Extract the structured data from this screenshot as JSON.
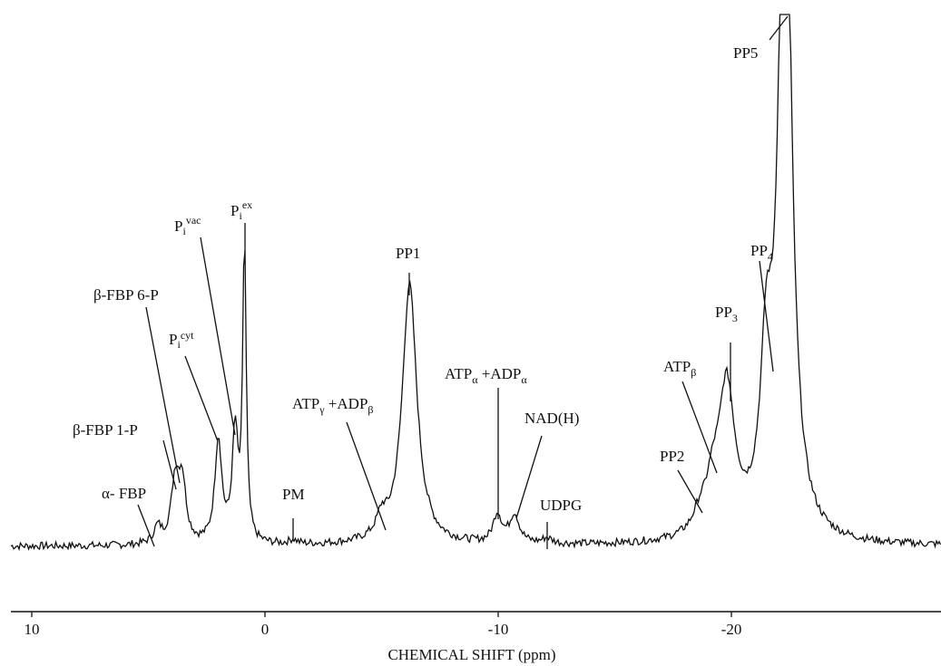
{
  "chart_data": {
    "type": "line",
    "title": "",
    "xlabel": "CHEMICAL SHIFT (ppm)",
    "ylabel": "",
    "xlim": [
      10.8,
      -28.5
    ],
    "x_ticks": [
      {
        "value": 10,
        "label": "10"
      },
      {
        "value": 0,
        "label": "0"
      },
      {
        "value": -10,
        "label": "-10"
      },
      {
        "value": -20,
        "label": "-20"
      }
    ],
    "baseline": 0.02,
    "series": [
      {
        "peaks": [
          {
            "x": 4.6,
            "height": 0.03,
            "width": 0.2
          },
          {
            "x": 3.85,
            "height": 0.11,
            "width": 0.2
          },
          {
            "x": 3.55,
            "height": 0.11,
            "width": 0.2
          },
          {
            "x": 2.0,
            "height": 0.19,
            "width": 0.18
          },
          {
            "x": 1.28,
            "height": 0.2,
            "width": 0.15
          },
          {
            "x": 0.88,
            "height": 0.55,
            "width": 0.09
          },
          {
            "x": -1.2,
            "height": 0.008,
            "width": 0.2
          },
          {
            "x": -5.0,
            "height": 0.035,
            "width": 0.25
          },
          {
            "x": -6.2,
            "height": 0.48,
            "width": 0.38
          },
          {
            "x": -9.97,
            "height": 0.053,
            "width": 0.22
          },
          {
            "x": -10.7,
            "height": 0.053,
            "width": 0.25
          },
          {
            "x": -12.1,
            "height": 0.01,
            "width": 0.25
          },
          {
            "x": -18.65,
            "height": 0.03,
            "width": 0.35
          },
          {
            "x": -19.2,
            "height": 0.07,
            "width": 0.35
          },
          {
            "x": -19.8,
            "height": 0.27,
            "width": 0.42
          },
          {
            "x": -21.5,
            "height": 0.28,
            "width": 0.3
          },
          {
            "x": -22.3,
            "height": 1.4,
            "width": 0.32
          }
        ]
      }
    ]
  },
  "labels": {
    "alpha_fbp": "α- FBP",
    "beta_fbp_1p": "β-FBP 1-P",
    "beta_fbp_6p": "β-FBP 6-P",
    "pi_cyt_main": "P",
    "pi_cyt_sub": "i",
    "pi_cyt_sup": "cyt",
    "pi_vac_main": "P",
    "pi_vac_sub": "i",
    "pi_vac_sup": "vac",
    "pi_ex_main": "P",
    "pi_ex_sub": "i",
    "pi_ex_sup": "ex",
    "pm": "PM",
    "atp_gamma_main": "ATP",
    "atp_gamma_sub": "γ",
    "adp_beta_main": " +ADP",
    "adp_beta_sub": "β",
    "pp1": "PP1",
    "atp_alpha_main": "ATP",
    "atp_alpha_sub": "α",
    "adp_alpha_main": " +ADP",
    "adp_alpha_sub": "α",
    "nadh": "NAD(H)",
    "udpg": "UDPG",
    "pp2": "PP2",
    "atp_beta_main": "ATP",
    "atp_beta_sub": "β",
    "pp3_main": "PP",
    "pp3_sub": "3",
    "pp4_main": "PP",
    "pp4_sub": "4",
    "pp5": "PP5"
  }
}
